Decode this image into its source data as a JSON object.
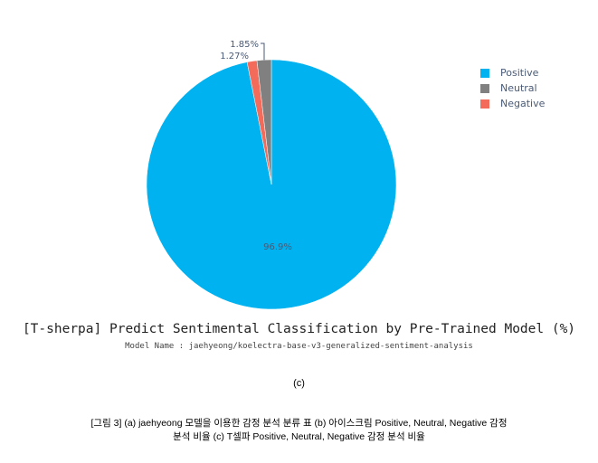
{
  "chart_data": {
    "type": "pie",
    "title": "[T-sherpa] Predict Sentimental Classification by Pre-Trained Model (%)",
    "subtitle": "Model Name : jaehyeong/koelectra-base-v3-generalized-sentiment-analysis",
    "categories": [
      "Positive",
      "Neutral",
      "Negative"
    ],
    "values": [
      96.9,
      1.85,
      1.27
    ],
    "data_labels": [
      "96.9%",
      "1.85%",
      "1.27%"
    ],
    "colors": [
      "#00b2f0",
      "#808080",
      "#f26b5b"
    ],
    "legend_position": "top-right"
  },
  "panel_label": "(c)",
  "caption": {
    "line1": "[그림 3] (a) jaehyeong 모델을 이용한 감정 분석 분류 표  (b) 아이스크림 Positive, Neutral, Negative 감정",
    "line2": "분석 비율  (c) T셀파 Positive, Neutral, Negative 감정 분석 비율"
  }
}
